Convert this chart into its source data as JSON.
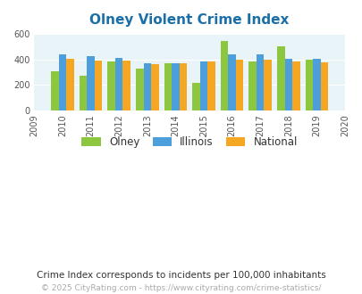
{
  "title": "Olney Violent Crime Index",
  "years": [
    2009,
    2010,
    2011,
    2012,
    2013,
    2014,
    2015,
    2016,
    2017,
    2018,
    2019,
    2020
  ],
  "olney": [
    310,
    275,
    382,
    330,
    373,
    213,
    547,
    382,
    506,
    400
  ],
  "illinois": [
    438,
    428,
    410,
    372,
    368,
    382,
    437,
    443,
    405,
    405
  ],
  "national": [
    405,
    390,
    390,
    365,
    370,
    383,
    398,
    395,
    382,
    375
  ],
  "data_years": [
    2010,
    2011,
    2012,
    2013,
    2014,
    2015,
    2016,
    2017,
    2018,
    2019
  ],
  "colors": {
    "olney": "#8dc63f",
    "illinois": "#4d9fdb",
    "national": "#f5a623"
  },
  "ylim": [
    0,
    600
  ],
  "yticks": [
    0,
    200,
    400,
    600
  ],
  "background_color": "#e8f4f8",
  "subtitle": "Crime Index corresponds to incidents per 100,000 inhabitants",
  "footer": "© 2025 CityRating.com - https://www.cityrating.com/crime-statistics/",
  "title_color": "#1a6fa8",
  "subtitle_color": "#333333",
  "footer_color": "#aaaaaa",
  "legend_labels": [
    "Olney",
    "Illinois",
    "National"
  ]
}
